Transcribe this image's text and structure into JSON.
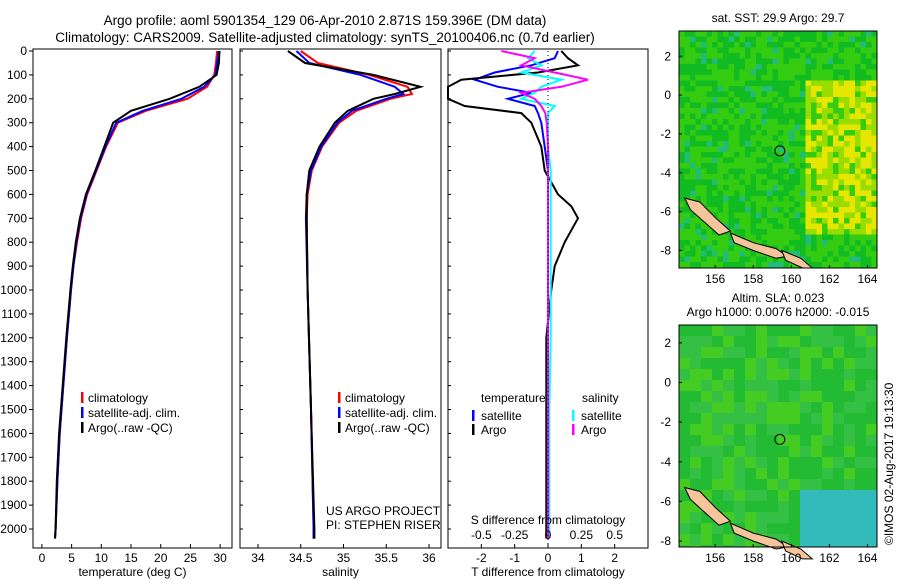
{
  "title_line1": "Argo profile: aoml 5901354_129 06-Apr-2010 2.871S 159.396E (DM data)",
  "title_line2": "Climatology: CARS2009. Satellite-adjusted climatology: synTS_20100406.nc (0.7d earlier)",
  "timestamp": "©IMOS 02-Aug-2017 19:13:30",
  "colors": {
    "climatology": "#ff0000",
    "satellite": "#0000ff",
    "argo": "#000000",
    "sal_satellite": "#00ffff",
    "sal_argo": "#ff00ff"
  },
  "chart_data": [
    {
      "type": "line",
      "name": "temperature-profile",
      "xlabel": "temperature (deg C)",
      "ylabel": "",
      "xlim": [
        -1.5,
        32
      ],
      "ylim": [
        2080,
        0
      ],
      "xticks": [
        0,
        5,
        10,
        15,
        20,
        25,
        30
      ],
      "yticks": [
        0,
        100,
        200,
        300,
        400,
        500,
        600,
        700,
        800,
        900,
        1000,
        1100,
        1200,
        1300,
        1400,
        1500,
        1600,
        1700,
        1800,
        1900,
        2000
      ],
      "legend": [
        "climatology",
        "satellite-adj. clim.",
        "Argo(..raw -QC)"
      ],
      "depth": [
        0,
        50,
        100,
        150,
        200,
        250,
        300,
        400,
        500,
        600,
        700,
        800,
        900,
        1000,
        1200,
        1400,
        1600,
        1800,
        2000,
        2040
      ],
      "series": [
        {
          "name": "climatology",
          "color": "#ff0000",
          "values": [
            29.5,
            29.3,
            29.0,
            27.8,
            24.5,
            17.5,
            12.8,
            10.8,
            9.2,
            7.6,
            6.6,
            5.9,
            5.3,
            4.9,
            4.2,
            3.6,
            3.0,
            2.6,
            2.3,
            2.2
          ]
        },
        {
          "name": "satellite-adj. clim.",
          "color": "#0000ff",
          "values": [
            29.8,
            29.5,
            29.2,
            27.3,
            23.5,
            17.0,
            12.5,
            10.7,
            9.1,
            7.5,
            6.5,
            5.8,
            5.3,
            4.9,
            4.2,
            3.6,
            3.0,
            2.6,
            2.3,
            2.2
          ]
        },
        {
          "name": "Argo(..raw -QC)",
          "color": "#000000",
          "values": [
            29.9,
            29.8,
            29.4,
            26.5,
            21.5,
            15.0,
            12.0,
            10.5,
            9.0,
            7.4,
            6.4,
            5.7,
            5.2,
            4.8,
            4.1,
            3.5,
            2.9,
            2.5,
            2.3,
            2.2
          ]
        }
      ]
    },
    {
      "type": "line",
      "name": "salinity-profile",
      "xlabel": "salinity",
      "ylabel": "",
      "xlim": [
        33.79,
        36.14
      ],
      "ylim": [
        2080,
        0
      ],
      "xticks": [
        34,
        34.5,
        35,
        35.5,
        36
      ],
      "legend": [
        "climatology",
        "satellite-adj. clim.",
        "Argo(..raw -QC)"
      ],
      "annotation": [
        "US ARGO PROJECT",
        "PI: STEPHEN RISER"
      ],
      "depth": [
        0,
        50,
        100,
        150,
        180,
        200,
        250,
        300,
        400,
        500,
        600,
        700,
        1000,
        1500,
        2000,
        2040
      ],
      "series": [
        {
          "name": "climatology",
          "color": "#ff0000",
          "values": [
            34.5,
            34.7,
            35.3,
            35.75,
            35.8,
            35.55,
            35.15,
            34.95,
            34.75,
            34.63,
            34.58,
            34.57,
            34.58,
            34.62,
            34.65,
            34.65
          ]
        },
        {
          "name": "satellite-adj. clim.",
          "color": "#0000ff",
          "values": [
            34.45,
            34.6,
            35.2,
            35.6,
            35.7,
            35.5,
            35.1,
            34.93,
            34.74,
            34.62,
            34.57,
            34.56,
            34.58,
            34.62,
            34.65,
            34.65
          ]
        },
        {
          "name": "Argo(..raw -QC)",
          "color": "#000000",
          "values": [
            34.35,
            34.55,
            35.35,
            35.9,
            35.6,
            35.35,
            35.05,
            34.9,
            34.72,
            34.6,
            34.57,
            34.57,
            34.58,
            34.62,
            34.66,
            34.66
          ]
        }
      ]
    },
    {
      "type": "line",
      "name": "difference-profile",
      "xlabel": "T difference from climatology",
      "x2label": "S difference from climatology",
      "xlim": [
        -3,
        3
      ],
      "x2lim": [
        -0.75,
        0.75
      ],
      "ylim": [
        2080,
        0
      ],
      "xticks": [
        -2,
        -1,
        0,
        1,
        2
      ],
      "x2ticks": [
        "-0.5",
        "-0.25",
        "0",
        "0.25",
        "0.5"
      ],
      "x2tickvals": [
        -0.5,
        -0.25,
        0,
        0.25,
        0.5
      ],
      "legend_headers": [
        "temperature",
        "salinity"
      ],
      "legend": [
        "satellite",
        "Argo",
        "satellite",
        "Argo"
      ],
      "depth": [
        0,
        30,
        60,
        90,
        120,
        150,
        175,
        200,
        230,
        260,
        300,
        400,
        500,
        550,
        600,
        650,
        700,
        800,
        900,
        1000,
        1200,
        1500,
        2000,
        2040
      ],
      "series": [
        {
          "name": "T satellite",
          "color": "#0000ff",
          "values": [
            0.3,
            0.2,
            -0.5,
            -1.6,
            -2.2,
            -1.5,
            -0.5,
            -1.2,
            -0.4,
            -0.3,
            -0.2,
            -0.1,
            0,
            0,
            0,
            0,
            0,
            0,
            0,
            0,
            0,
            0,
            0,
            0
          ]
        },
        {
          "name": "T Argo",
          "color": "#000000",
          "values": [
            0.4,
            0.6,
            0.9,
            -0.3,
            -2.6,
            -3.0,
            -3.0,
            -3.0,
            -2.5,
            -0.8,
            -0.5,
            -0.2,
            -0.1,
            0.1,
            0.3,
            0.7,
            0.9,
            0.5,
            0.2,
            0.1,
            -0.05,
            -0.05,
            -0.05,
            -0.05
          ]
        },
        {
          "name": "S satellite",
          "color": "#00ffff",
          "values": [
            -0.1,
            -0.15,
            -0.05,
            -0.2,
            0.1,
            -0.05,
            -0.1,
            -0.2,
            0.05,
            0.0,
            0.0,
            0.0,
            0.02,
            0.02,
            0.02,
            0.02,
            0.02,
            0.02,
            0.02,
            0.02,
            0.02,
            0.01,
            0.01,
            0.01
          ]
        },
        {
          "name": "S Argo",
          "color": "#ff00ff",
          "values": [
            -0.35,
            -0.1,
            -0.2,
            0.05,
            0.3,
            0.1,
            -0.2,
            -0.1,
            -0.05,
            -0.02,
            -0.01,
            0.0,
            0.0,
            0.0,
            0.0,
            0.0,
            0.0,
            0.0,
            0.0,
            0.0,
            0.0,
            0.0,
            0.0,
            0.0
          ]
        }
      ]
    },
    {
      "type": "heatmap",
      "name": "sst-map",
      "title": "sat. SST: 29.9 Argo: 29.7",
      "xlim": [
        154.1,
        164.5
      ],
      "ylim": [
        -8.9,
        3.3
      ],
      "xticks": [
        156,
        158,
        160,
        162,
        164
      ],
      "yticks": [
        2,
        0,
        -2,
        -4,
        -6,
        -8
      ],
      "marker": {
        "lon": 159.396,
        "lat": -2.871
      }
    },
    {
      "type": "heatmap",
      "name": "sla-map",
      "title": "Altim. SLA: 0.023",
      "subtitle": "Argo h1000: 0.0076 h2000: -0.015",
      "xlim": [
        154.1,
        164.5
      ],
      "ylim": [
        -8.3,
        2.9
      ],
      "xticks": [
        156,
        158,
        160,
        162,
        164
      ],
      "yticks": [
        2,
        0,
        -2,
        -4,
        -6,
        -8
      ],
      "marker": {
        "lon": 159.396,
        "lat": -2.871
      }
    }
  ]
}
